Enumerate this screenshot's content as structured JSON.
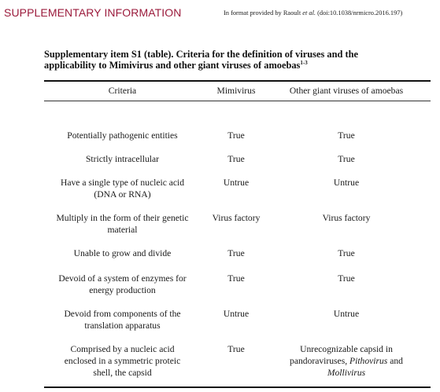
{
  "header": {
    "section_title": "SUPPLEMENTARY INFORMATION",
    "source_prefix": "In format provided by Raoult ",
    "source_italic": "et al.",
    "source_suffix": " (doi:10.1038/nrmicro.2016.197)"
  },
  "caption": {
    "text": "Supplementary item S1 (table). Criteria for the definition of viruses and the applicability to Mimivirus and other giant viruses of amoebas",
    "superscript": "1-3"
  },
  "table": {
    "headers": {
      "criteria": "Criteria",
      "mimivirus": "Mimivirus",
      "other": "Other giant viruses of amoebas"
    },
    "rows": [
      {
        "criteria": [
          "Potentially pathogenic entities"
        ],
        "mimivirus": "True",
        "other": [
          "True"
        ]
      },
      {
        "criteria": [
          "Strictly intracellular"
        ],
        "mimivirus": "True",
        "other": [
          "True"
        ]
      },
      {
        "criteria": [
          "Have a single type of nucleic acid",
          "(DNA or RNA)"
        ],
        "mimivirus": "Untrue",
        "other": [
          "Untrue"
        ]
      },
      {
        "criteria": [
          "Multiply in the form of their genetic",
          "material"
        ],
        "mimivirus": "Virus factory",
        "other": [
          "Virus factory"
        ]
      },
      {
        "criteria": [
          "Unable to grow and divide"
        ],
        "mimivirus": "True",
        "other": [
          "True"
        ]
      },
      {
        "criteria": [
          "Devoid of a system of enzymes for",
          "energy production"
        ],
        "mimivirus": "True",
        "other": [
          "True"
        ]
      },
      {
        "criteria": [
          "Devoid from components of the",
          "translation apparatus"
        ],
        "mimivirus": "Untrue",
        "other": [
          "Untrue"
        ]
      },
      {
        "criteria": [
          "Comprised by a nucleic acid",
          "enclosed in a symmetric proteic",
          "shell, the capsid"
        ],
        "mimivirus": "True",
        "other": [
          "Unrecognizable capsid in",
          "pandoraviruses, ",
          "Pithovirus",
          " and",
          "Mollivirus"
        ]
      }
    ]
  },
  "colors": {
    "section_title": "#9b1b3c",
    "text": "#1a1a1a",
    "rule": "#111111"
  }
}
